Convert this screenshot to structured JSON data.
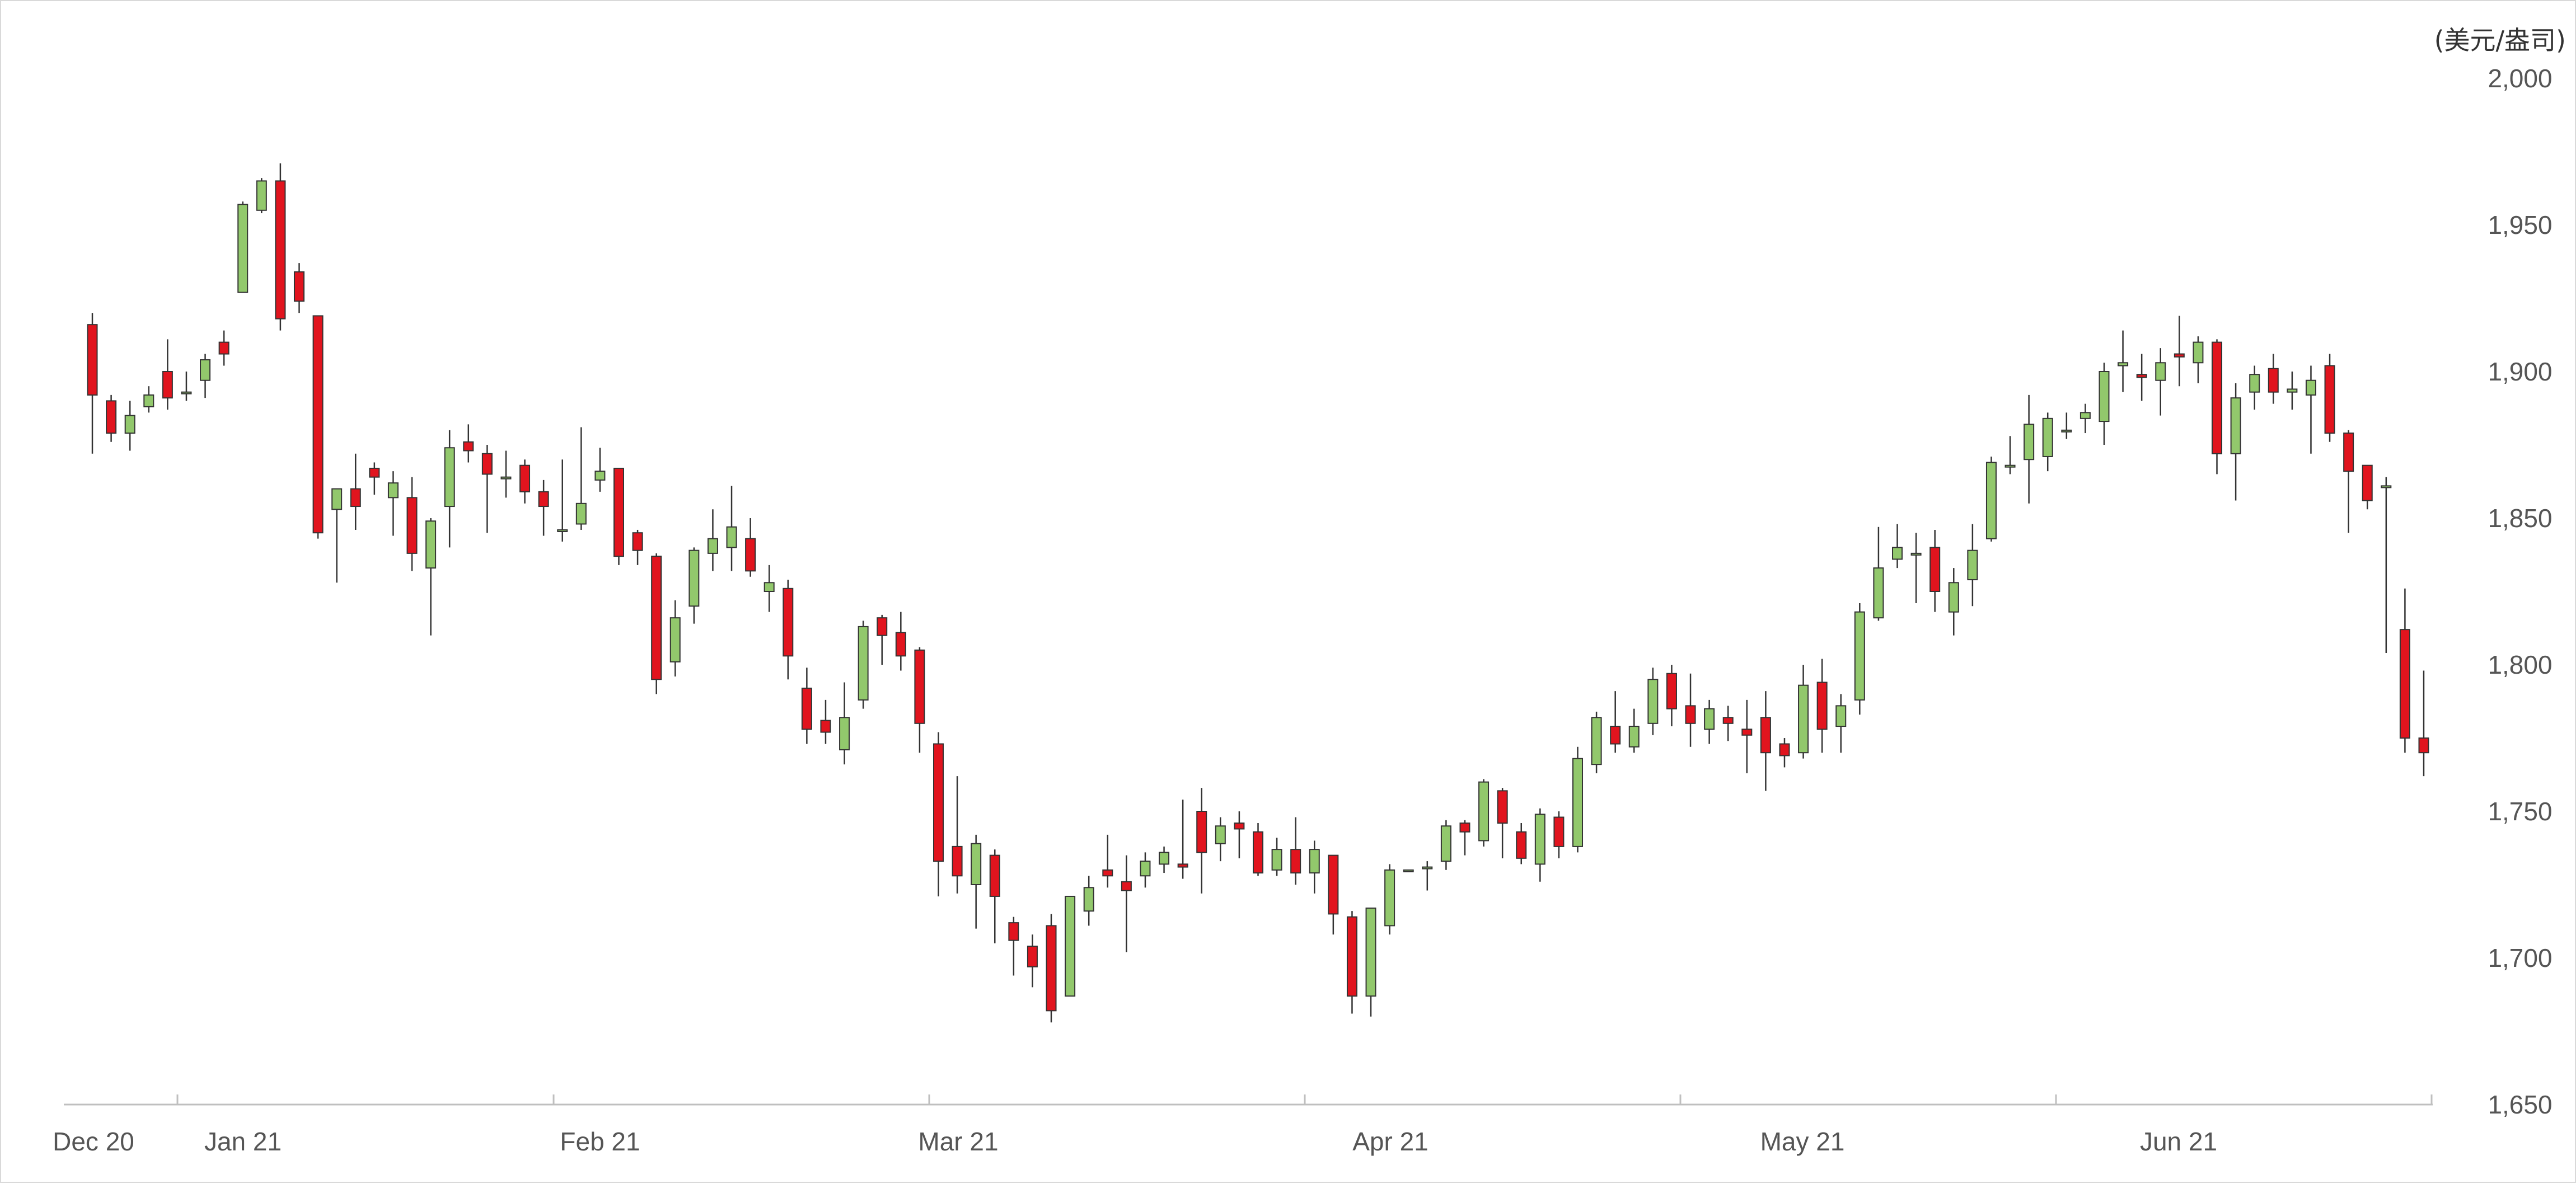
{
  "chart_data": {
    "type": "candlestick",
    "unit_label": "(美元/盎司)",
    "ylim": [
      1650,
      2000
    ],
    "y_ticks": [
      "1,650",
      "1,700",
      "1,750",
      "1,800",
      "1,850",
      "1,900",
      "1,950",
      "2,000"
    ],
    "y_tick_values": [
      1650,
      1700,
      1750,
      1800,
      1850,
      1900,
      1950,
      2000
    ],
    "x_ticks": [
      "Dec 20",
      "Jan 21",
      "Feb 21",
      "Mar 21",
      "Apr 21",
      "May 21",
      "Jun 21"
    ],
    "grid": false,
    "colors": {
      "up": "#92c86c",
      "down": "#e1141e",
      "wick": "#333333",
      "axis": "#bfbfbf",
      "text": "#555555"
    },
    "candles": [
      [
        1916,
        1892,
        1920,
        1872
      ],
      [
        1890,
        1879,
        1892,
        1876
      ],
      [
        1879,
        1885,
        1890,
        1873
      ],
      [
        1888,
        1892,
        1895,
        1886
      ],
      [
        1900,
        1891,
        1911,
        1887
      ],
      [
        1893,
        1893,
        1900,
        1890
      ],
      [
        1897,
        1904,
        1906,
        1891
      ],
      [
        1910,
        1906,
        1914,
        1902
      ],
      [
        1927,
        1957,
        1958,
        1927
      ],
      [
        1955,
        1965,
        1966,
        1954
      ],
      [
        1965,
        1918,
        1971,
        1914
      ],
      [
        1934,
        1924,
        1937,
        1920
      ],
      [
        1919,
        1845,
        1919,
        1843
      ],
      [
        1853,
        1860,
        1860,
        1828
      ],
      [
        1860,
        1854,
        1872,
        1846
      ],
      [
        1867,
        1864,
        1869,
        1858
      ],
      [
        1857,
        1862,
        1866,
        1844
      ],
      [
        1857,
        1838,
        1864,
        1832
      ],
      [
        1833,
        1849,
        1850,
        1810
      ],
      [
        1854,
        1874,
        1880,
        1840
      ],
      [
        1876,
        1873,
        1882,
        1869
      ],
      [
        1872,
        1865,
        1875,
        1845
      ],
      [
        1864,
        1864,
        1873,
        1857
      ],
      [
        1868,
        1859,
        1870,
        1855
      ],
      [
        1859,
        1854,
        1863,
        1844
      ],
      [
        1846,
        1846,
        1870,
        1842
      ],
      [
        1848,
        1855,
        1881,
        1846
      ],
      [
        1863,
        1866,
        1874,
        1859
      ],
      [
        1867,
        1837,
        1867,
        1834
      ],
      [
        1845,
        1839,
        1846,
        1834
      ],
      [
        1837,
        1795,
        1838,
        1790
      ],
      [
        1801,
        1816,
        1822,
        1796
      ],
      [
        1820,
        1839,
        1840,
        1814
      ],
      [
        1838,
        1843,
        1853,
        1832
      ],
      [
        1840,
        1847,
        1861,
        1832
      ],
      [
        1843,
        1832,
        1850,
        1830
      ],
      [
        1825,
        1828,
        1834,
        1818
      ],
      [
        1826,
        1803,
        1829,
        1795
      ],
      [
        1792,
        1778,
        1799,
        1773
      ],
      [
        1781,
        1777,
        1788,
        1773
      ],
      [
        1771,
        1782,
        1794,
        1766
      ],
      [
        1788,
        1813,
        1815,
        1785
      ],
      [
        1816,
        1810,
        1817,
        1800
      ],
      [
        1811,
        1803,
        1818,
        1798
      ],
      [
        1805,
        1780,
        1806,
        1770
      ],
      [
        1773,
        1733,
        1777,
        1721
      ],
      [
        1738,
        1728,
        1762,
        1722
      ],
      [
        1725,
        1739,
        1742,
        1710
      ],
      [
        1735,
        1721,
        1737,
        1705
      ],
      [
        1712,
        1706,
        1714,
        1694
      ],
      [
        1704,
        1697,
        1708,
        1690
      ],
      [
        1711,
        1682,
        1715,
        1678
      ],
      [
        1687,
        1721,
        1721,
        1687
      ],
      [
        1716,
        1724,
        1728,
        1711
      ],
      [
        1730,
        1728,
        1742,
        1724
      ],
      [
        1726,
        1723,
        1735,
        1702
      ],
      [
        1728,
        1733,
        1736,
        1724
      ],
      [
        1732,
        1736,
        1738,
        1729
      ],
      [
        1732,
        1731,
        1754,
        1727
      ],
      [
        1750,
        1736,
        1758,
        1722
      ],
      [
        1739,
        1745,
        1748,
        1733
      ],
      [
        1746,
        1744,
        1750,
        1734
      ],
      [
        1743,
        1729,
        1746,
        1728
      ],
      [
        1730,
        1737,
        1741,
        1728
      ],
      [
        1737,
        1729,
        1748,
        1725
      ],
      [
        1729,
        1737,
        1740,
        1722
      ],
      [
        1735,
        1715,
        1735,
        1708
      ],
      [
        1714,
        1687,
        1716,
        1681
      ],
      [
        1687,
        1717,
        1717,
        1680
      ],
      [
        1711,
        1730,
        1732,
        1708
      ],
      [
        1730,
        1730,
        1730,
        1730
      ],
      [
        1731,
        1731,
        1733,
        1723
      ],
      [
        1733,
        1745,
        1747,
        1730
      ],
      [
        1746,
        1743,
        1747,
        1735
      ],
      [
        1740,
        1760,
        1761,
        1738
      ],
      [
        1757,
        1746,
        1758,
        1734
      ],
      [
        1743,
        1734,
        1746,
        1732
      ],
      [
        1732,
        1749,
        1751,
        1726
      ],
      [
        1748,
        1738,
        1750,
        1734
      ],
      [
        1738,
        1768,
        1772,
        1736
      ],
      [
        1766,
        1782,
        1784,
        1763
      ],
      [
        1779,
        1773,
        1791,
        1770
      ],
      [
        1772,
        1779,
        1785,
        1770
      ],
      [
        1780,
        1795,
        1799,
        1776
      ],
      [
        1797,
        1785,
        1800,
        1779
      ],
      [
        1786,
        1780,
        1797,
        1772
      ],
      [
        1778,
        1785,
        1788,
        1773
      ],
      [
        1782,
        1780,
        1786,
        1774
      ],
      [
        1778,
        1776,
        1788,
        1763
      ],
      [
        1782,
        1770,
        1791,
        1757
      ],
      [
        1773,
        1769,
        1775,
        1765
      ],
      [
        1770,
        1793,
        1800,
        1768
      ],
      [
        1794,
        1778,
        1802,
        1770
      ],
      [
        1779,
        1786,
        1790,
        1770
      ],
      [
        1788,
        1818,
        1821,
        1783
      ],
      [
        1816,
        1833,
        1847,
        1815
      ],
      [
        1836,
        1840,
        1848,
        1833
      ],
      [
        1838,
        1838,
        1845,
        1821
      ],
      [
        1840,
        1825,
        1846,
        1818
      ],
      [
        1818,
        1828,
        1833,
        1810
      ],
      [
        1829,
        1839,
        1848,
        1820
      ],
      [
        1843,
        1869,
        1871,
        1842
      ],
      [
        1868,
        1868,
        1878,
        1865
      ],
      [
        1870,
        1882,
        1892,
        1855
      ],
      [
        1871,
        1884,
        1886,
        1866
      ],
      [
        1880,
        1880,
        1886,
        1877
      ],
      [
        1884,
        1886,
        1889,
        1879
      ],
      [
        1883,
        1900,
        1903,
        1875
      ],
      [
        1902,
        1903,
        1914,
        1893
      ],
      [
        1899,
        1898,
        1906,
        1890
      ],
      [
        1897,
        1903,
        1908,
        1885
      ],
      [
        1906,
        1905,
        1919,
        1895
      ],
      [
        1903,
        1910,
        1912,
        1896
      ],
      [
        1910,
        1872,
        1911,
        1865
      ],
      [
        1872,
        1891,
        1896,
        1856
      ],
      [
        1893,
        1899,
        1902,
        1887
      ],
      [
        1901,
        1893,
        1906,
        1889
      ],
      [
        1893,
        1894,
        1900,
        1887
      ],
      [
        1892,
        1897,
        1902,
        1872
      ],
      [
        1902,
        1879,
        1906,
        1876
      ],
      [
        1879,
        1866,
        1880,
        1845
      ],
      [
        1868,
        1856,
        1868,
        1853
      ],
      [
        1861,
        1861,
        1864,
        1804
      ],
      [
        1812,
        1775,
        1826,
        1770
      ],
      [
        1775,
        1770,
        1798,
        1762
      ]
    ]
  }
}
